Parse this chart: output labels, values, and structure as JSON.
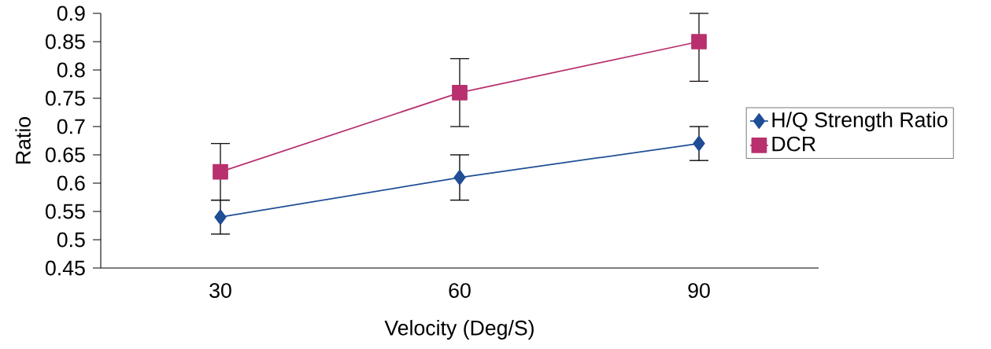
{
  "chart_data": {
    "type": "line",
    "xlabel": "Velocity (Deg/S)",
    "ylabel": "Ratio",
    "categories": [
      "30",
      "60",
      "90"
    ],
    "series": [
      {
        "name": "H/Q Strength Ratio",
        "color": "#1f4e96",
        "marker": "diamond",
        "values": [
          0.54,
          0.61,
          0.67
        ],
        "errors": [
          0.03,
          0.04,
          0.03
        ]
      },
      {
        "name": "DCR",
        "color": "#b8306e",
        "marker": "square",
        "values": [
          0.62,
          0.76,
          0.85
        ],
        "errors": [
          0.05,
          0.06,
          [
            0.78,
            0.9
          ]
        ]
      }
    ],
    "ylim": [
      0.45,
      0.9
    ],
    "yticks": [
      0.45,
      0.5,
      0.55,
      0.6,
      0.65,
      0.7,
      0.75,
      0.8,
      0.85,
      0.9
    ],
    "grid": false,
    "legend": "right",
    "line_style": "solid"
  }
}
